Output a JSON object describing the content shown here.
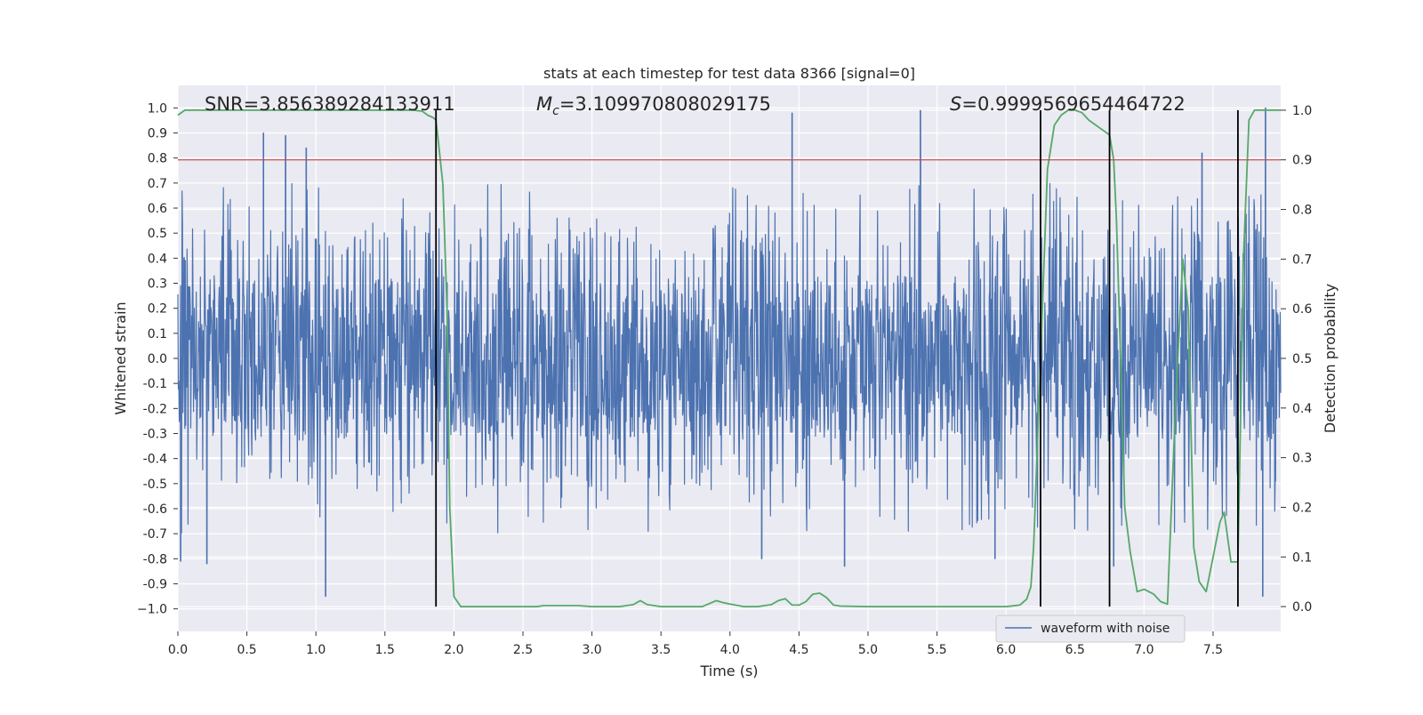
{
  "chart_data": {
    "type": "line",
    "title": "stats at each timestep for test data 8366 [signal=0]",
    "xlabel": "Time (s)",
    "ylabel": "Whitened strain",
    "ylabel_right": "Detection probability",
    "xlim": [
      0.0,
      7.99
    ],
    "ylim": [
      -1.09,
      1.09
    ],
    "ylim_right": [
      -0.05,
      1.05
    ],
    "x_ticks": [
      0.0,
      0.5,
      1.0,
      1.5,
      2.0,
      2.5,
      3.0,
      3.5,
      4.0,
      4.5,
      5.0,
      5.5,
      6.0,
      6.5,
      7.0,
      7.5
    ],
    "x_tick_labels": [
      "0.0",
      "0.5",
      "1.0",
      "1.5",
      "2.0",
      "2.5",
      "3.0",
      "3.5",
      "4.0",
      "4.5",
      "5.0",
      "5.5",
      "6.0",
      "6.5",
      "7.0",
      "7.5"
    ],
    "y_ticks": [
      1.0,
      0.9,
      0.8,
      0.7,
      0.6,
      0.5,
      0.4,
      0.3,
      0.2,
      0.1,
      0.0,
      -0.1,
      -0.2,
      -0.3,
      -0.4,
      -0.5,
      -0.6,
      -0.7,
      -0.8,
      -0.9,
      -1.0
    ],
    "y_tick_labels": [
      "1.0",
      "0.9",
      "0.8",
      "0.7",
      "0.6",
      "0.5",
      "0.4",
      "0.3",
      "0.2",
      "0.1",
      "0.0",
      "-0.1",
      "-0.2",
      "-0.3",
      "-0.4",
      "-0.5",
      "-0.6",
      "-0.7",
      "-0.8",
      "-0.9",
      "−1.0"
    ],
    "y_right_ticks": [
      1.0,
      0.9,
      0.8,
      0.7,
      0.6,
      0.5,
      0.4,
      0.3,
      0.2,
      0.1,
      0.0
    ],
    "y_right_tick_labels": [
      "1.0",
      "0.9",
      "0.8",
      "0.7",
      "0.6",
      "0.5",
      "0.4",
      "0.3",
      "0.2",
      "0.1",
      "0.0"
    ],
    "grid": true,
    "legend_position": "lower-right",
    "annotations": {
      "snr": "SNR=3.856389284133911",
      "mc_symbol": "M",
      "mc_subscript": "c",
      "mc_value": "=3.109970808029175",
      "s_symbol": "S",
      "s_value": "=0.9999569654464722"
    },
    "threshold_line": {
      "y_right": 0.9,
      "color": "#c44e52"
    },
    "vertical_lines": [
      1.87,
      6.25,
      6.75,
      7.68
    ],
    "series": [
      {
        "name": "waveform with noise",
        "axis": "left",
        "color": "#4c72b0",
        "envelope_amplitude": 0.33,
        "spike_peaks": [
          {
            "x": 0.62,
            "y": 0.9
          },
          {
            "x": 0.78,
            "y": 0.89
          },
          {
            "x": 0.93,
            "y": 0.84
          },
          {
            "x": 1.07,
            "y": -0.95
          },
          {
            "x": 0.21,
            "y": -0.82
          },
          {
            "x": 0.02,
            "y": -0.81
          },
          {
            "x": 4.45,
            "y": 0.98
          },
          {
            "x": 5.38,
            "y": 0.99
          },
          {
            "x": 4.83,
            "y": -0.83
          },
          {
            "x": 4.23,
            "y": -0.8
          },
          {
            "x": 5.92,
            "y": -0.8
          },
          {
            "x": 7.88,
            "y": 1.0
          },
          {
            "x": 7.86,
            "y": -0.95
          },
          {
            "x": 6.78,
            "y": -0.83
          },
          {
            "x": 7.42,
            "y": 0.82
          },
          {
            "x": 7.68,
            "y": 0.9
          }
        ]
      },
      {
        "name": "",
        "axis": "right",
        "color": "#55a868",
        "x": [
          0.0,
          0.05,
          0.1,
          0.3,
          0.5,
          0.8,
          1.0,
          1.2,
          1.4,
          1.5,
          1.6,
          1.7,
          1.77,
          1.81,
          1.85,
          1.87,
          1.89,
          1.92,
          1.95,
          1.97,
          2.0,
          2.05,
          2.1,
          2.15,
          2.25,
          2.4,
          2.5,
          2.55,
          2.6,
          2.65,
          2.7,
          2.8,
          2.9,
          3.0,
          3.1,
          3.2,
          3.3,
          3.35,
          3.4,
          3.5,
          3.6,
          3.7,
          3.8,
          3.9,
          3.95,
          4.0,
          4.1,
          4.2,
          4.3,
          4.35,
          4.4,
          4.45,
          4.5,
          4.55,
          4.6,
          4.65,
          4.7,
          4.75,
          4.8,
          5.0,
          5.5,
          6.0,
          6.1,
          6.15,
          6.18,
          6.2,
          6.25,
          6.3,
          6.35,
          6.4,
          6.45,
          6.5,
          6.55,
          6.6,
          6.7,
          6.75,
          6.78,
          6.8,
          6.83,
          6.86,
          6.9,
          6.95,
          7.0,
          7.07,
          7.12,
          7.17,
          7.23,
          7.28,
          7.32,
          7.36,
          7.4,
          7.45,
          7.5,
          7.55,
          7.58,
          7.63,
          7.68,
          7.72,
          7.76,
          7.8,
          7.85,
          7.88,
          7.92,
          7.99
        ],
        "y": [
          0.99,
          1.0,
          1.0,
          1.0,
          1.0,
          1.0,
          1.0,
          1.0,
          1.0,
          1.0,
          1.0,
          1.0,
          0.998,
          0.99,
          0.985,
          0.98,
          0.93,
          0.85,
          0.6,
          0.2,
          0.02,
          0.0,
          0.0,
          0.0,
          0.0,
          0.0,
          0.0,
          0.0,
          0.0,
          0.002,
          0.002,
          0.002,
          0.002,
          0.0,
          0.0,
          0.0,
          0.004,
          0.012,
          0.004,
          0.0,
          0.0,
          0.0,
          0.0,
          0.012,
          0.008,
          0.005,
          0.0,
          0.0,
          0.004,
          0.012,
          0.016,
          0.003,
          0.003,
          0.01,
          0.025,
          0.027,
          0.018,
          0.003,
          0.001,
          0.0,
          0.0,
          0.0,
          0.003,
          0.015,
          0.04,
          0.12,
          0.5,
          0.88,
          0.97,
          0.99,
          1.0,
          1.0,
          0.995,
          0.98,
          0.96,
          0.95,
          0.9,
          0.78,
          0.5,
          0.2,
          0.11,
          0.03,
          0.035,
          0.025,
          0.01,
          0.005,
          0.42,
          0.7,
          0.6,
          0.12,
          0.05,
          0.03,
          0.1,
          0.17,
          0.19,
          0.09,
          0.09,
          0.7,
          0.98,
          1.0,
          1.0,
          1.0,
          1.0,
          1.0
        ]
      }
    ]
  }
}
